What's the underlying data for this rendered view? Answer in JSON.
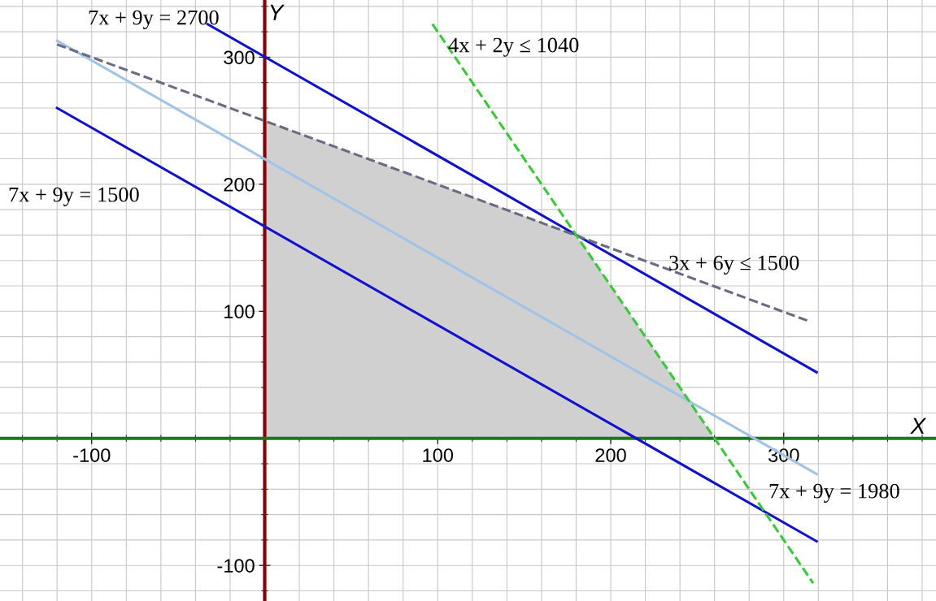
{
  "chart_data": {
    "type": "line",
    "xlabel": "X",
    "ylabel": "Y",
    "xlim": [
      -153,
      388
    ],
    "ylim": [
      -128,
      345
    ],
    "xticks": [
      -100,
      100,
      200,
      300
    ],
    "yticks": [
      -100,
      100,
      200,
      300
    ],
    "grid": true,
    "line_style": "solid",
    "marker": "none",
    "series": [
      {
        "type": "area",
        "color": "#d0d0d0",
        "x": [
          0,
          180,
          260
        ],
        "values": [
          250,
          160,
          0
        ]
      },
      {
        "color": "#1010d0",
        "x": [
          -33,
          319
        ],
        "values": [
          326,
          52
        ]
      },
      {
        "color": "#1010d0",
        "x": [
          -120,
          319
        ],
        "values": [
          260,
          -81
        ]
      },
      {
        "color": "#a0c4e8",
        "x": [
          -120,
          319
        ],
        "values": [
          313,
          -28
        ]
      },
      {
        "color": "#6a6a80",
        "line_style": "dashed",
        "x": [
          -120,
          315
        ],
        "values": [
          310,
          92
        ]
      },
      {
        "color": "#33cc33",
        "line_style": "dashed",
        "x": [
          97,
          317
        ],
        "values": [
          326,
          -114
        ]
      }
    ],
    "annotations": [
      "7x + 9y = 2700",
      {
        "text": "4x + 2y ≤ 1040",
        "x": 106,
        "y": 308
      },
      "7x + 9y = 1500",
      "3x + 6y ≤ 1500",
      "7x + 9y = 1980"
    ]
  }
}
